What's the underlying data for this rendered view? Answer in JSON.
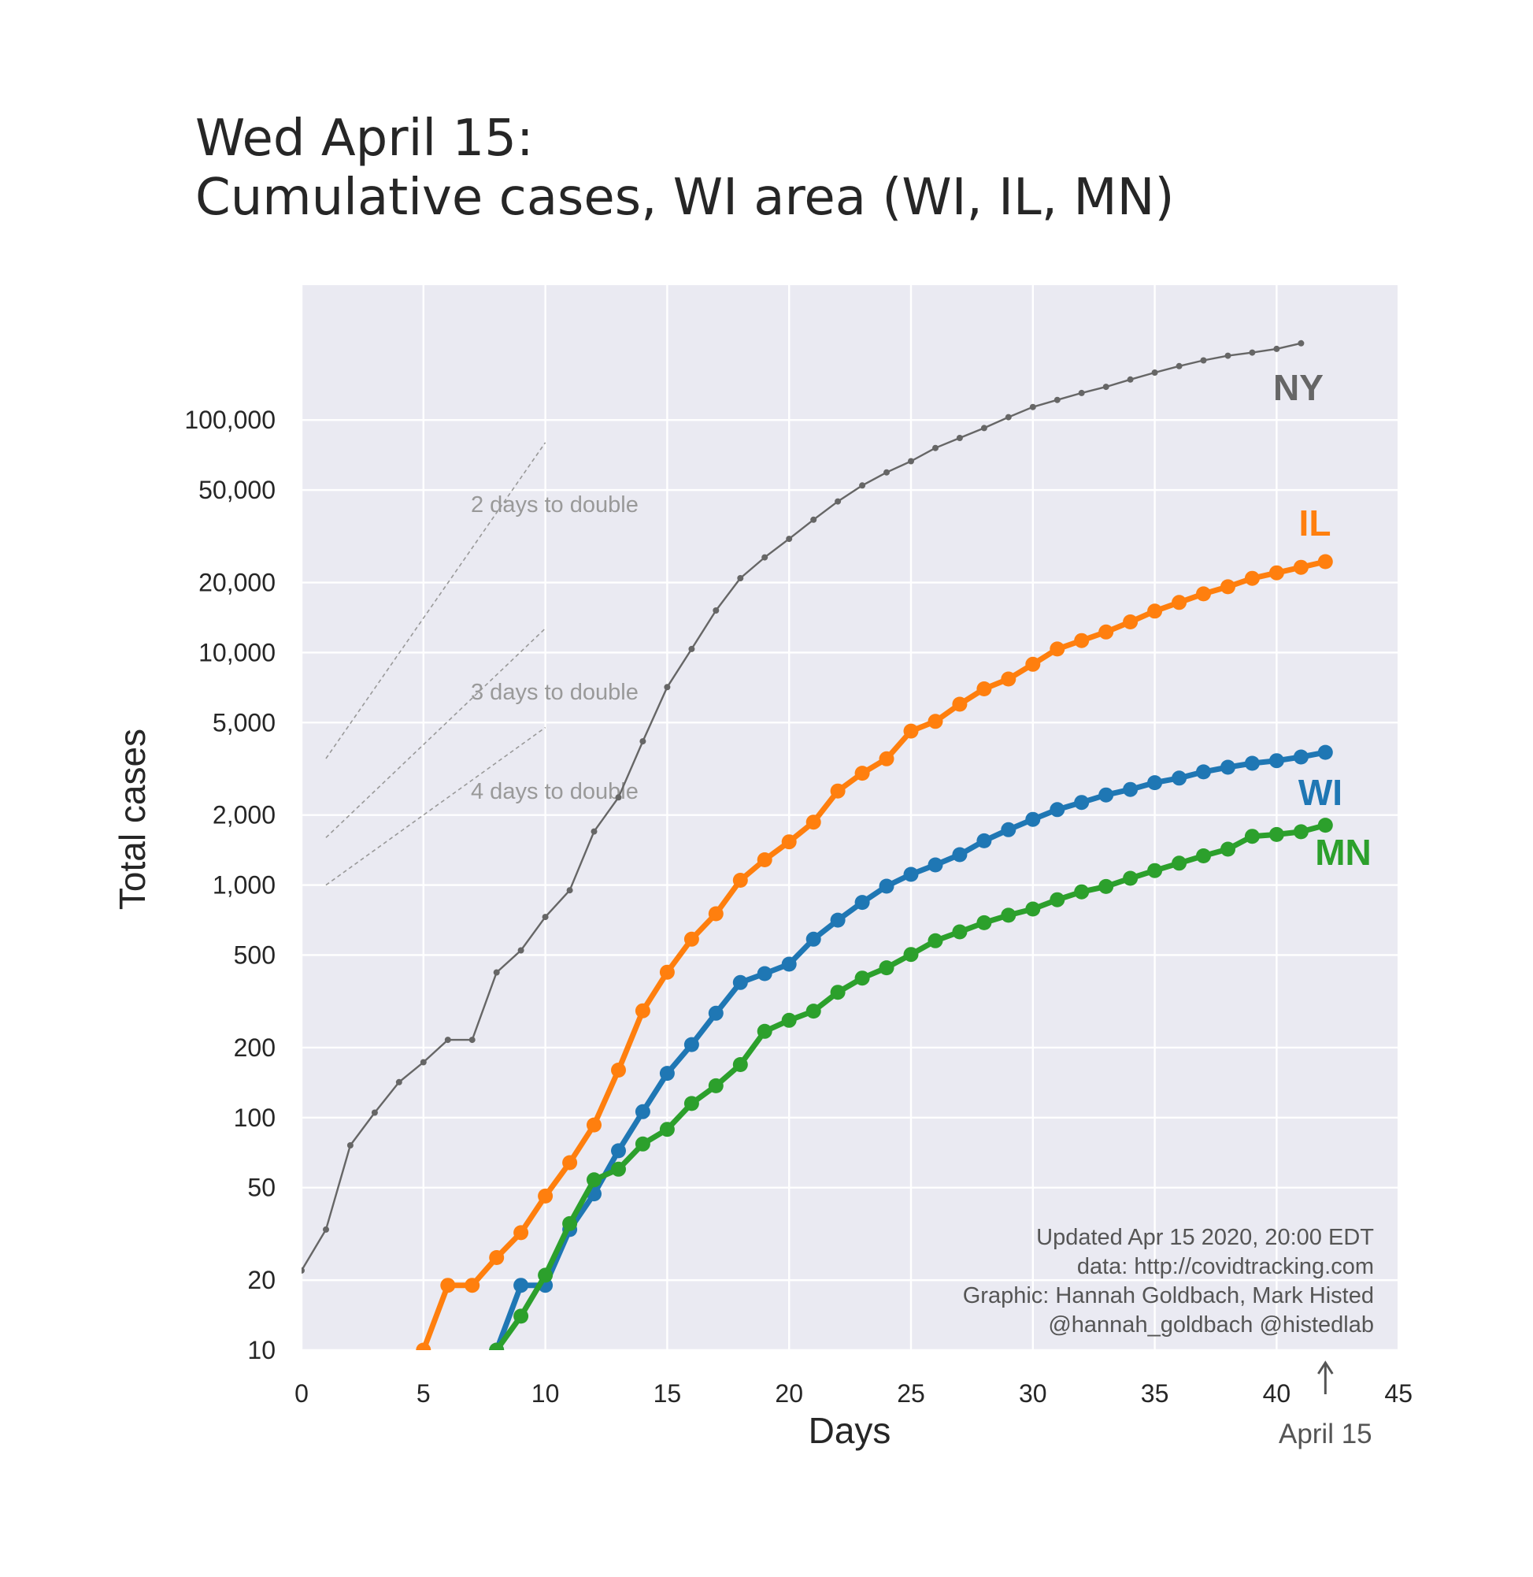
{
  "chart_data": {
    "type": "line",
    "title": "Wed April 15:",
    "subtitle": "Cumulative cases, WI area (WI, IL, MN)",
    "xlabel": "Days",
    "ylabel": "Total cases",
    "xlim": [
      0,
      45
    ],
    "ylim": [
      10,
      400000
    ],
    "yscale": "log",
    "grid": true,
    "x_ticks": [
      0,
      5,
      10,
      15,
      20,
      25,
      30,
      35,
      40,
      45
    ],
    "x_tick_labels": [
      "0",
      "5",
      "10",
      "15",
      "20",
      "25",
      "30",
      "35",
      "40",
      "45"
    ],
    "y_ticks": [
      10,
      20,
      50,
      100,
      200,
      500,
      1000,
      2000,
      5000,
      10000,
      20000,
      50000,
      100000
    ],
    "y_tick_labels": [
      "10",
      "20",
      "50",
      "100",
      "200",
      "500",
      "1,000",
      "2,000",
      "5,000",
      "10,000",
      "20,000",
      "50,000",
      "100,000"
    ],
    "series": [
      {
        "name": "NY",
        "color": "#666666",
        "style": "thin",
        "x": [
          0,
          1,
          2,
          3,
          4,
          5,
          6,
          7,
          8,
          9,
          10,
          11,
          12,
          13,
          14,
          15,
          16,
          17,
          18,
          19,
          20,
          21,
          22,
          23,
          24,
          25,
          26,
          27,
          28,
          29,
          30,
          31,
          32,
          33,
          34,
          35,
          36,
          37,
          38,
          39,
          40,
          41
        ],
        "values": [
          22,
          33,
          76,
          105,
          142,
          173,
          216,
          216,
          421,
          524,
          729,
          950,
          1700,
          2382,
          4152,
          7102,
          10356,
          15168,
          20875,
          25665,
          30811,
          37258,
          44635,
          52318,
          59513,
          66497,
          75795,
          83712,
          92381,
          102863,
          113704,
          122031,
          130689,
          138863,
          149316,
          159937,
          170512,
          180458,
          189033,
          195031,
          202208,
          213779
        ]
      },
      {
        "name": "IL",
        "color": "#ff7f0e",
        "style": "thick",
        "x": [
          5,
          6,
          7,
          8,
          9,
          10,
          11,
          12,
          13,
          14,
          15,
          16,
          17,
          18,
          19,
          20,
          21,
          22,
          23,
          24,
          25,
          26,
          27,
          28,
          29,
          30,
          31,
          32,
          33,
          34,
          35,
          36,
          37,
          38,
          39,
          40,
          41,
          42
        ],
        "values": [
          10,
          19,
          19,
          25,
          32,
          46,
          64,
          93,
          160,
          288,
          422,
          585,
          753,
          1049,
          1285,
          1535,
          1865,
          2538,
          3026,
          3491,
          4596,
          5057,
          5994,
          6980,
          7695,
          8904,
          10357,
          11256,
          12262,
          13549,
          15078,
          16422,
          17887,
          19180,
          20852,
          22025,
          23247,
          24593
        ]
      },
      {
        "name": "WI",
        "color": "#1f77b4",
        "style": "thick",
        "x": [
          8,
          9,
          10,
          11,
          12,
          13,
          14,
          15,
          16,
          17,
          18,
          19,
          20,
          21,
          22,
          23,
          24,
          25,
          26,
          27,
          28,
          29,
          30,
          31,
          32,
          33,
          34,
          35,
          36,
          37,
          38,
          39,
          40,
          41,
          42
        ],
        "values": [
          10,
          19,
          19,
          33,
          47,
          72,
          106,
          155,
          206,
          281,
          381,
          416,
          457,
          585,
          707,
          842,
          989,
          1112,
          1221,
          1351,
          1550,
          1730,
          1916,
          2112,
          2267,
          2440,
          2578,
          2756,
          2885,
          3068,
          3213,
          3341,
          3428,
          3555,
          3721
        ]
      },
      {
        "name": "MN",
        "color": "#2ca02c",
        "style": "thick",
        "x": [
          8,
          9,
          10,
          11,
          12,
          13,
          14,
          15,
          16,
          17,
          18,
          19,
          20,
          21,
          22,
          23,
          24,
          25,
          26,
          27,
          28,
          29,
          30,
          31,
          32,
          33,
          34,
          35,
          36,
          37,
          38,
          39,
          40,
          41,
          42
        ],
        "values": [
          10,
          14,
          21,
          35,
          54,
          60,
          77,
          89,
          115,
          137,
          169,
          235,
          262,
          287,
          346,
          398,
          441,
          503,
          576,
          629,
          689,
          742,
          789,
          865,
          935,
          986,
          1069,
          1154,
          1242,
          1336,
          1427,
          1621,
          1650,
          1695,
          1809
        ]
      }
    ],
    "doubling_guides": [
      {
        "label": "2 days to double",
        "start_x": 1,
        "start_y": 3500,
        "end_x": 10,
        "end_y": 80000
      },
      {
        "label": "3 days to double",
        "start_x": 1,
        "start_y": 1600,
        "end_x": 10,
        "end_y": 12700
      },
      {
        "label": "4 days to double",
        "start_x": 1,
        "start_y": 1000,
        "end_x": 10,
        "end_y": 4760
      }
    ],
    "annotations": {
      "credits": [
        "Updated Apr 15 2020, 20:00 EDT",
        "data: http://covidtracking.com",
        "Graphic: Hannah Goldbach, Mark Histed",
        "@hannah_goldbach @histedlab"
      ],
      "date_marker": {
        "label": "April 15",
        "x": 42
      }
    }
  }
}
